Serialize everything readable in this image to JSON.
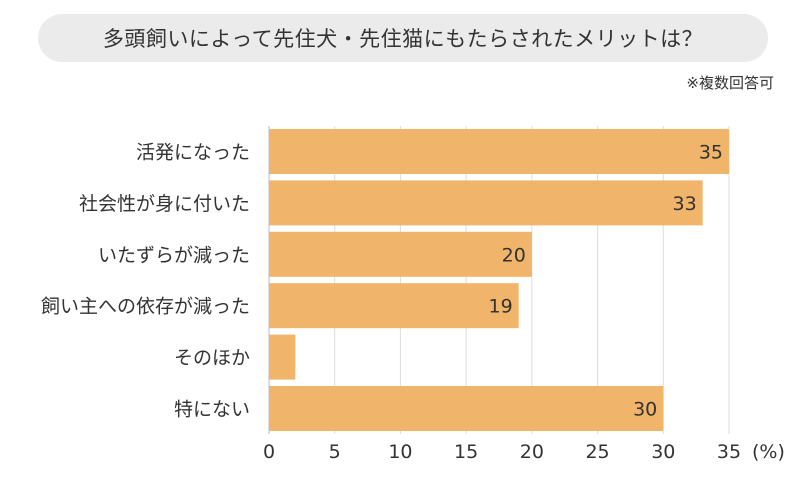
{
  "title": "多頭飼いによって先住犬・先住猫にもたらされたメリットは？",
  "note": "※複数回答可",
  "unit_label": "(%)",
  "colors": {
    "bar": "#f0b46b",
    "grid": "#dddddd",
    "title_bg": "#ebebeb"
  },
  "chart_data": {
    "type": "bar",
    "orientation": "horizontal",
    "title": "多頭飼いによって先住犬・先住猫にもたらされたメリットは？",
    "categories": [
      "活発になった",
      "社会性が身に付いた",
      "いたずらが減った",
      "飼い主への依存が減った",
      "そのほか",
      "特にない"
    ],
    "values": [
      35,
      33,
      20,
      19,
      2,
      30
    ],
    "data_labels": [
      "35",
      "33",
      "20",
      "19",
      "",
      "30"
    ],
    "xlim": [
      0,
      35
    ],
    "xticks": [
      0,
      5,
      10,
      15,
      20,
      25,
      30,
      35
    ],
    "xlabel": "(%)",
    "ylabel": "",
    "grid": true,
    "legend": "none"
  }
}
